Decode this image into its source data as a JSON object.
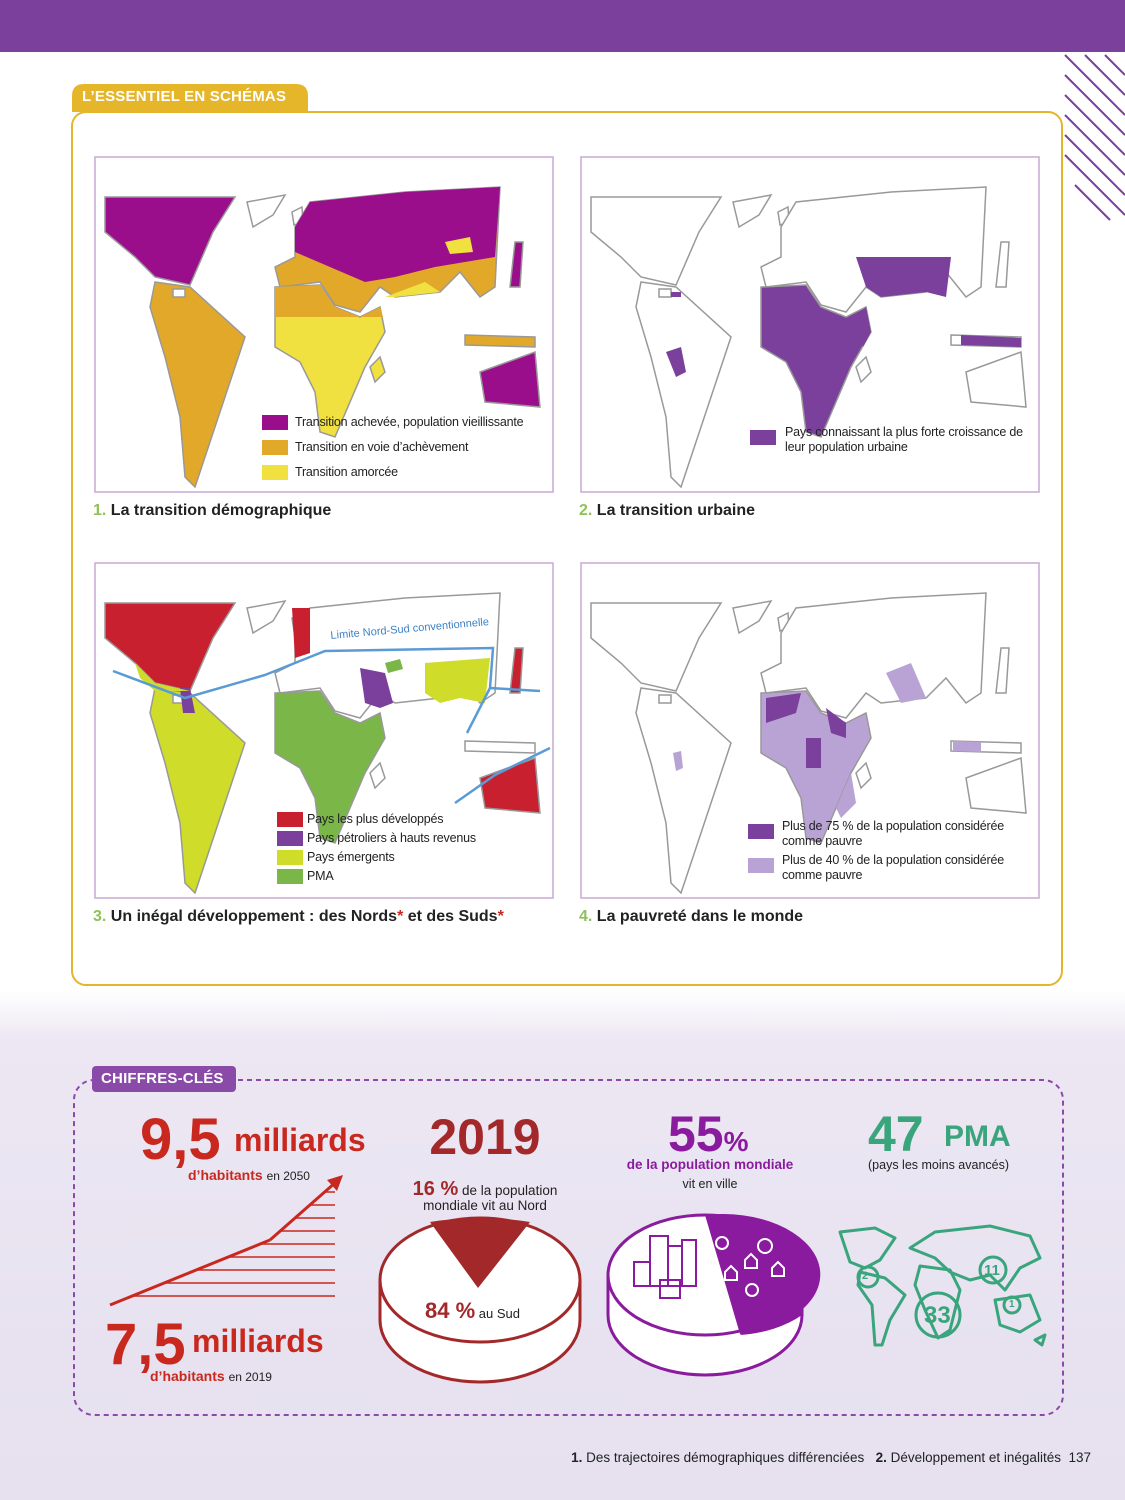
{
  "header": {
    "tag": "L’ESSENTIEL EN SCHÉMAS"
  },
  "maps": [
    {
      "number": "1.",
      "title": "La transition démographique",
      "legend": [
        "Transition achevée, population vieillissante",
        "Transition en voie d’achèvement",
        "Transition amorcée"
      ]
    },
    {
      "number": "2.",
      "title": "La transition urbaine",
      "legend": [
        "Pays connaissant la plus forte croissance de leur population urbaine"
      ]
    },
    {
      "number": "3.",
      "title": "Un inégal développement : des Nords",
      "title_asterisk": "*",
      "title_end": " et des Suds",
      "title_end_asterisk": "*",
      "annotation": "Limite Nord-Sud conventionnelle",
      "legend": [
        "Pays les plus développés",
        "Pays pétroliers à hauts revenus",
        "Pays émergents",
        "PMA"
      ]
    },
    {
      "number": "4.",
      "title": "La pauvreté dans le monde",
      "legend": [
        "Plus de 75 % de la population considérée comme pauvre",
        "Plus de 40 % de la population considérée comme pauvre"
      ]
    }
  ],
  "key_figures": {
    "tag": "CHIFFRES-CLÉS",
    "population_2050": {
      "value": "9,5",
      "unit": "milliards",
      "label": "d’habitants",
      "year": "en 2050"
    },
    "population_2019": {
      "value": "7,5",
      "unit": "milliards",
      "label": "d’habitants",
      "year": "en 2019"
    },
    "north_south": {
      "year": "2019",
      "north_value": "16 %",
      "north_label": "de la population mondiale vit au Nord",
      "south_value": "84 %",
      "south_label": "au Sud"
    },
    "urban": {
      "value": "55",
      "unit": "%",
      "label": "de la population mondiale",
      "label_end": "vit en ville"
    },
    "ldc": {
      "value": "47",
      "unit": "PMA",
      "label": "(pays les moins avancés)",
      "map_counts": [
        "2",
        "11",
        "33",
        "1"
      ]
    }
  },
  "footer": {
    "chapter_1_number": "1.",
    "chapter_1": "Des trajectoires démographiques différenciées",
    "chapter_2_number": "2.",
    "chapter_2": "Développement et inégalités",
    "page": "137"
  }
}
